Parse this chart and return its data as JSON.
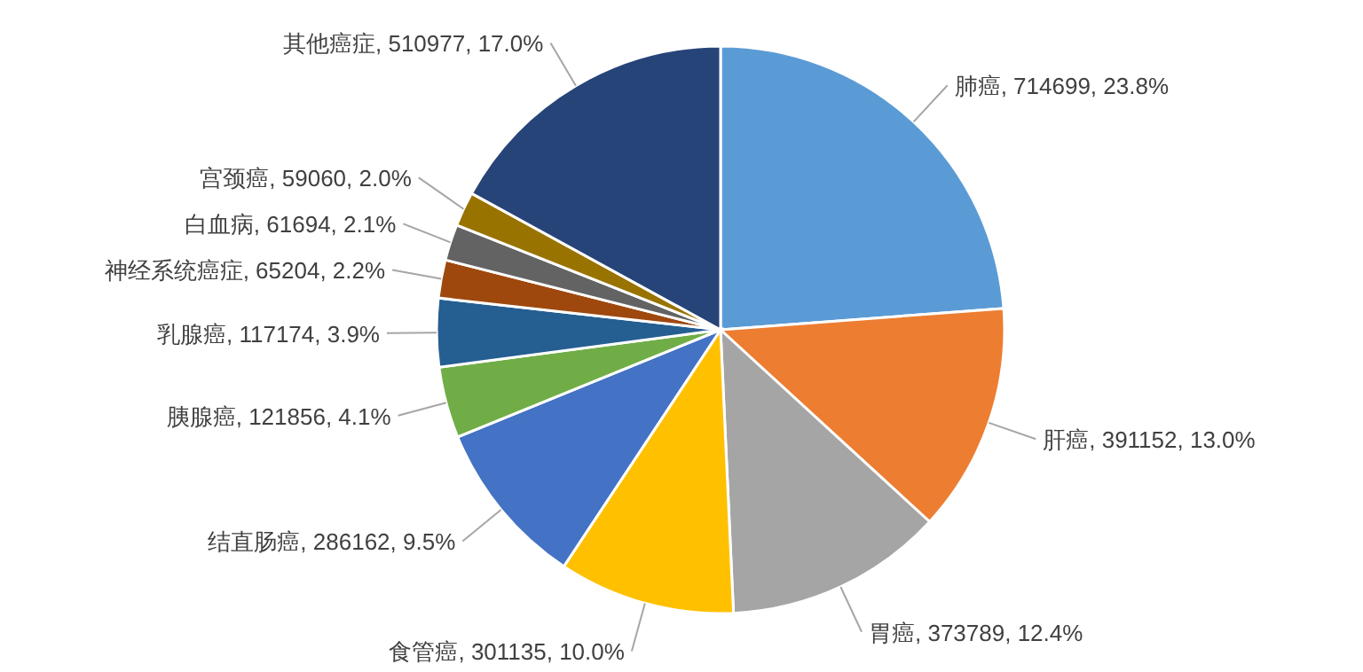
{
  "chart_data": {
    "type": "pie",
    "categories": [
      "肺癌",
      "肝癌",
      "胃癌",
      "食管癌",
      "结直肠癌",
      "胰腺癌",
      "乳腺癌",
      "神经系统癌症",
      "白血病",
      "宫颈癌",
      "其他癌症"
    ],
    "values": [
      714699,
      391152,
      373789,
      301135,
      286162,
      121856,
      117174,
      65204,
      61694,
      59060,
      510977
    ],
    "value_labels": [
      "714699, 23.8%",
      "391152, 13.0%",
      "373789, 12.4%",
      "301135, 10.0%",
      "286162, 9.5%",
      "121856, 4.1%",
      "117174, 3.9%",
      "65204, 2.2%",
      "61694, 2.1%",
      "59060, 2.0%",
      "510977, 17.0%"
    ],
    "colors": [
      "#5b9bd5",
      "#ed7d31",
      "#a5a5a5",
      "#ffc000",
      "#4472c4",
      "#70ad47",
      "#255e91",
      "#9e480e",
      "#636363",
      "#997300",
      "#264478"
    ]
  }
}
